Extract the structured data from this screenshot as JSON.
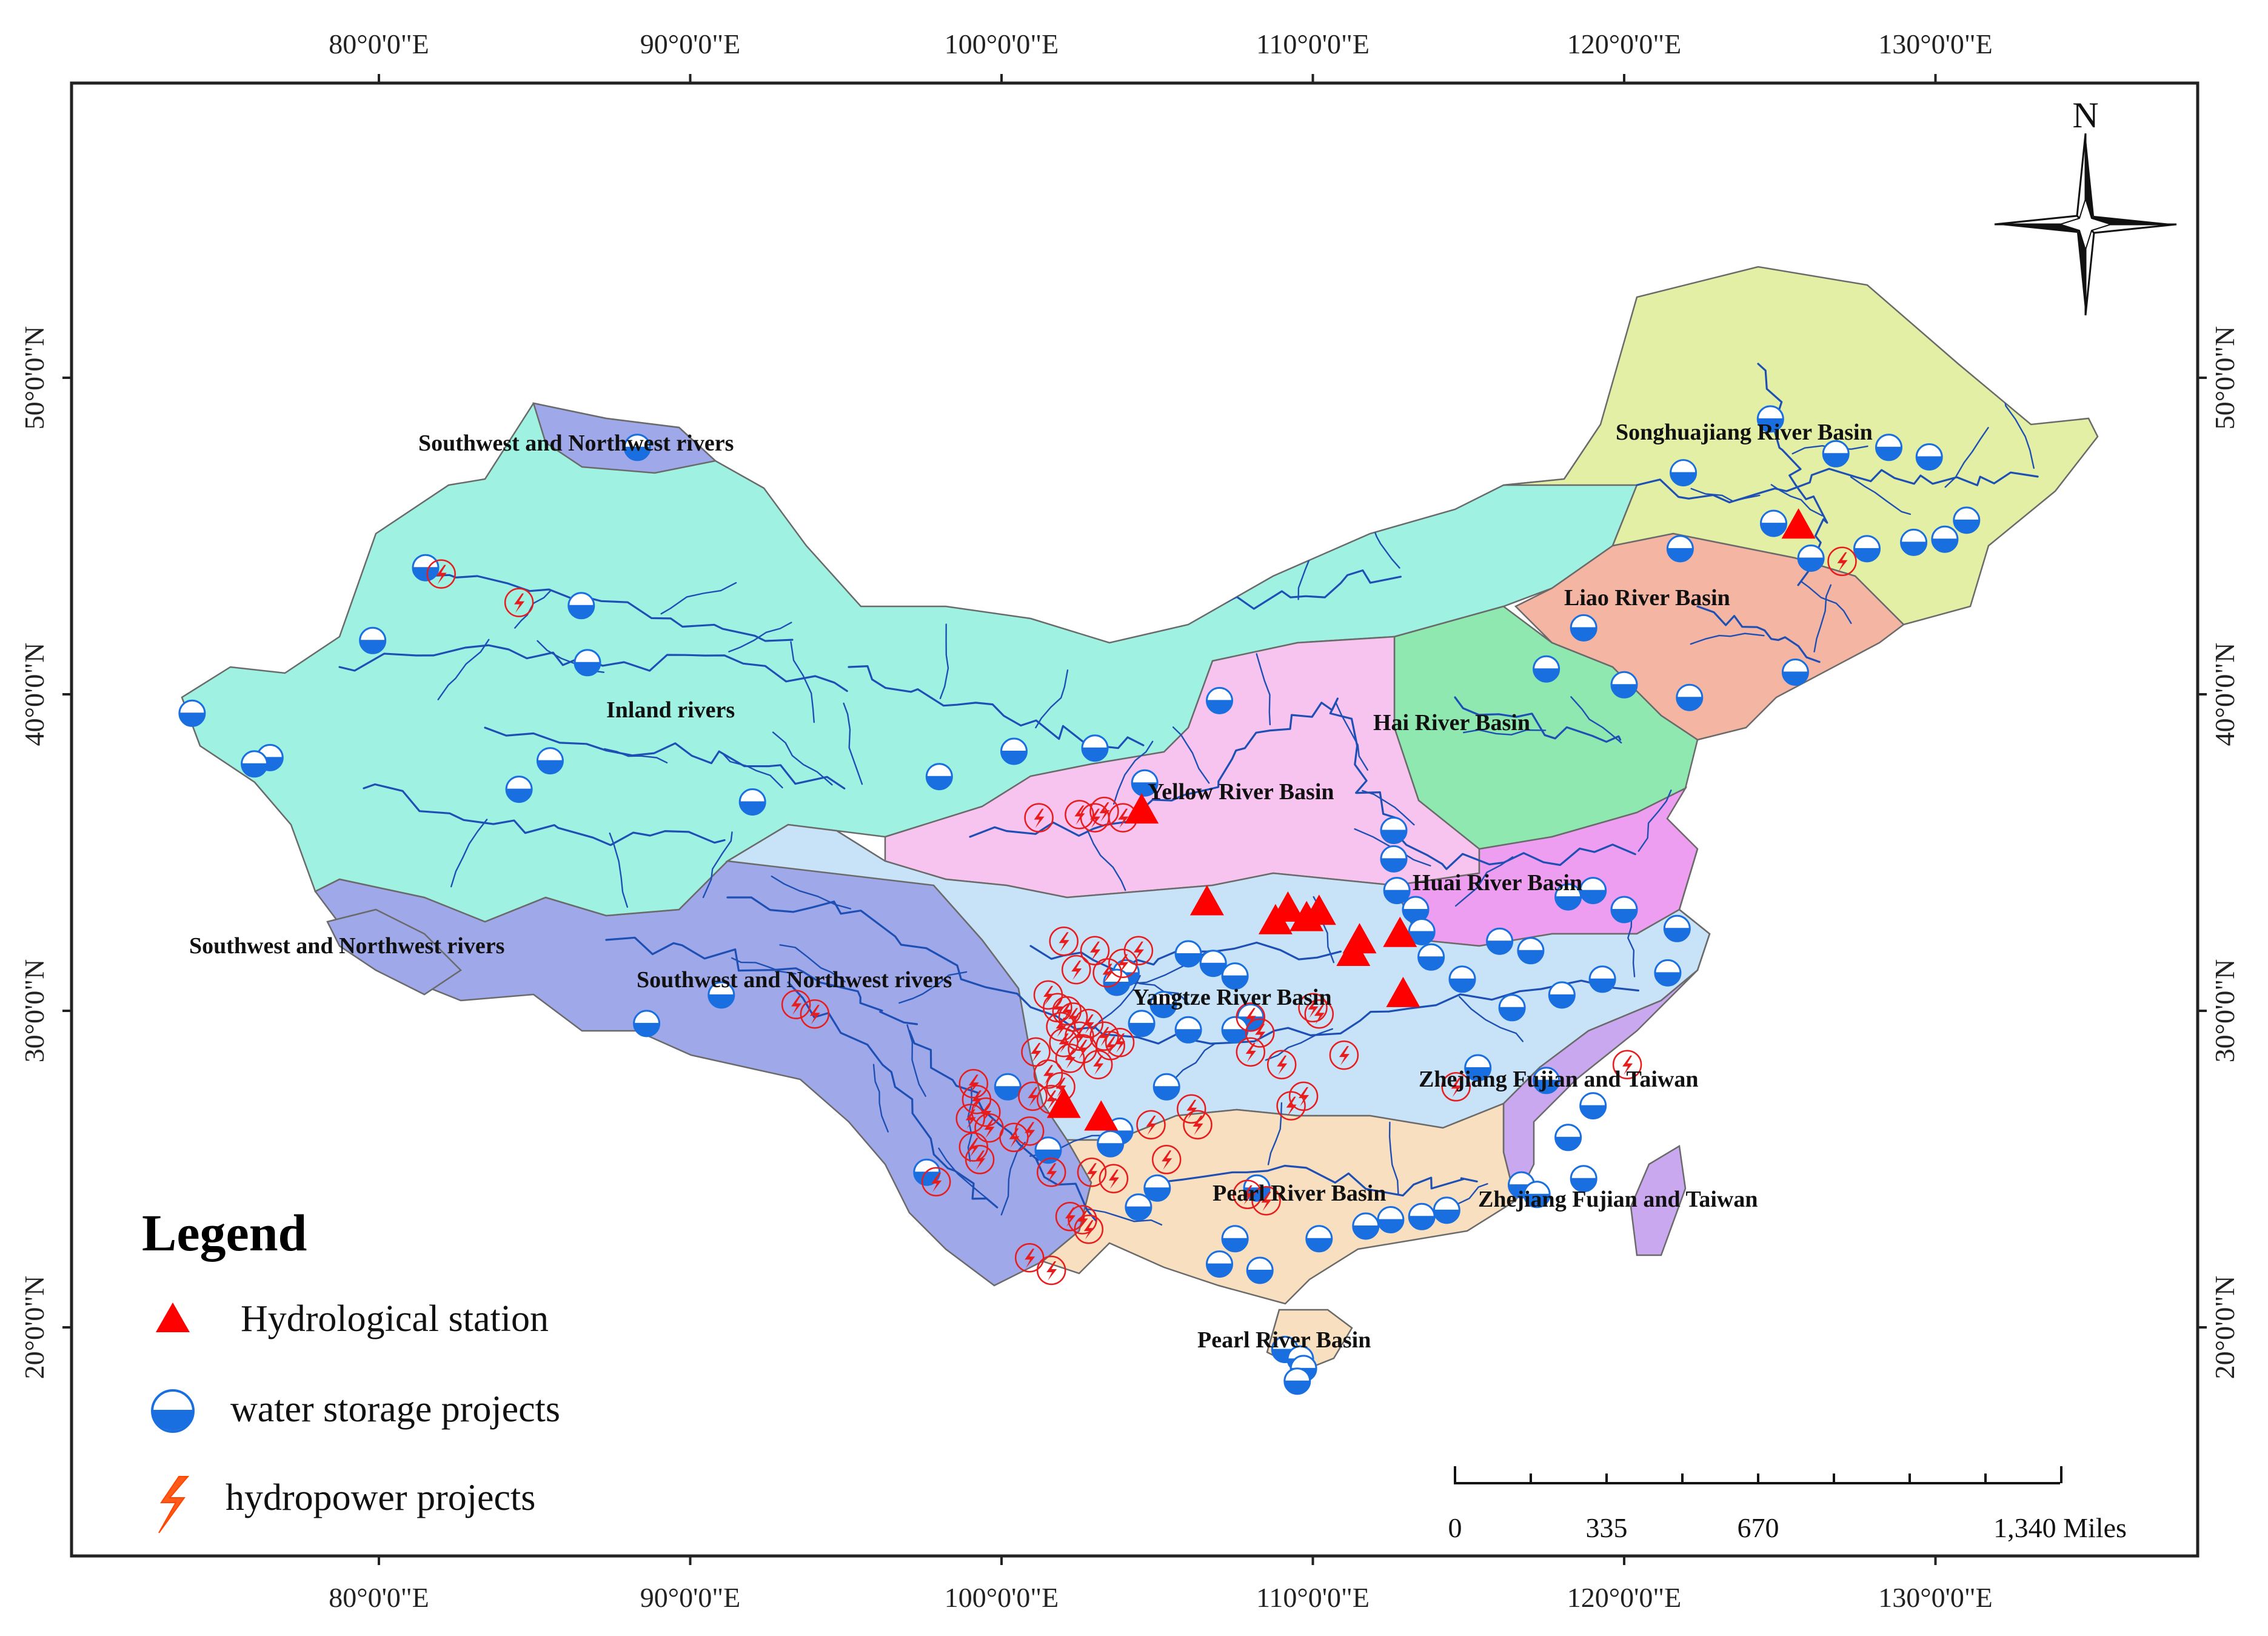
{
  "graticule": {
    "lon_ticks": [
      "80°0'0\"E",
      "90°0'0\"E",
      "100°0'0\"E",
      "110°0'0\"E",
      "120°0'0\"E",
      "130°0'0\"E"
    ],
    "lat_ticks": [
      "50°0'0\"N",
      "40°0'0\"N",
      "30°0'0\"N",
      "20°0'0\"N"
    ]
  },
  "north_arrow": {
    "label": "N",
    "icon": "compass-rose-icon"
  },
  "basins": [
    {
      "name": "Southwest and Northwest rivers",
      "color": "#9fa8e8"
    },
    {
      "name": "Southwest and Northwest rivers",
      "color": "#9fa8e8"
    },
    {
      "name": "Southwest and Northwest rivers",
      "color": "#9fa8e8"
    },
    {
      "name": "Inland rivers",
      "color": "#9ff2e2"
    },
    {
      "name": "Songhuajiang River Basin",
      "color": "#e3efa5"
    },
    {
      "name": "Liao River Basin",
      "color": "#f4b5a2"
    },
    {
      "name": "Hai River Basin",
      "color": "#8ee8b0"
    },
    {
      "name": "Yellow River Basin",
      "color": "#f6c4ee"
    },
    {
      "name": "Huai River Basin",
      "color": "#ee9ef0"
    },
    {
      "name": "Yangtze River Basin",
      "color": "#c8e2f8"
    },
    {
      "name": "Zhejiang Fujian and Taiwan",
      "color": "#c9a8ef"
    },
    {
      "name": "Zhejiang Fujian and Taiwan",
      "color": "#c9a8ef"
    },
    {
      "name": "Pearl River Basin",
      "color": "#f8dfbf"
    },
    {
      "name": "Pearl River Basin",
      "color": "#f8dfbf"
    }
  ],
  "legend": {
    "title": "Legend",
    "items": [
      {
        "label": "Hydrological station",
        "icon": "triangle-icon",
        "color": "#ff0000"
      },
      {
        "label": "water storage projects",
        "icon": "half-circle-icon",
        "color": "#1a6fe0"
      },
      {
        "label": "hydropower projects",
        "icon": "lightning-icon",
        "color": "#ff4500"
      }
    ]
  },
  "scale_bar": {
    "labels": [
      "0",
      "335",
      "670",
      "1,340 Miles"
    ]
  },
  "markers": {
    "hydrological_stations": [
      [
        104.5,
        36.3
      ],
      [
        106.6,
        33.4
      ],
      [
        108.8,
        32.8
      ],
      [
        109.2,
        33.2
      ],
      [
        109.8,
        32.9
      ],
      [
        110.2,
        33.1
      ],
      [
        111.5,
        32.2
      ],
      [
        111.3,
        31.8
      ],
      [
        112.8,
        32.4
      ],
      [
        112.9,
        30.5
      ],
      [
        102.0,
        27.0
      ],
      [
        103.2,
        26.6
      ],
      [
        125.6,
        45.3
      ]
    ],
    "water_storage": [
      [
        88.3,
        47.8
      ],
      [
        81.5,
        44.0
      ],
      [
        86.5,
        42.8
      ],
      [
        79.8,
        41.7
      ],
      [
        74.0,
        39.4
      ],
      [
        76.5,
        38.0
      ],
      [
        76.0,
        37.8
      ],
      [
        85.5,
        37.9
      ],
      [
        86.7,
        41.0
      ],
      [
        84.5,
        37.0
      ],
      [
        92.0,
        36.6
      ],
      [
        98.0,
        37.4
      ],
      [
        100.4,
        38.2
      ],
      [
        103.0,
        38.3
      ],
      [
        104.6,
        37.2
      ],
      [
        107.0,
        39.8
      ],
      [
        112.6,
        35.7
      ],
      [
        112.6,
        34.8
      ],
      [
        112.7,
        33.8
      ],
      [
        113.3,
        33.2
      ],
      [
        113.5,
        32.5
      ],
      [
        113.8,
        31.7
      ],
      [
        116.0,
        32.2
      ],
      [
        117.0,
        31.9
      ],
      [
        118.2,
        33.6
      ],
      [
        119.0,
        33.8
      ],
      [
        120.0,
        33.2
      ],
      [
        121.7,
        32.6
      ],
      [
        116.4,
        30.1
      ],
      [
        118.0,
        30.5
      ],
      [
        119.3,
        31.0
      ],
      [
        121.4,
        31.2
      ],
      [
        114.8,
        31.0
      ],
      [
        115.3,
        28.2
      ],
      [
        117.5,
        27.8
      ],
      [
        119.0,
        27.0
      ],
      [
        118.2,
        26.0
      ],
      [
        118.7,
        24.7
      ],
      [
        116.7,
        24.5
      ],
      [
        117.2,
        24.2
      ],
      [
        113.5,
        23.5
      ],
      [
        112.5,
        23.4
      ],
      [
        114.3,
        23.7
      ],
      [
        111.7,
        23.2
      ],
      [
        110.2,
        22.8
      ],
      [
        108.2,
        24.4
      ],
      [
        107.5,
        22.8
      ],
      [
        107.0,
        22.0
      ],
      [
        108.3,
        21.8
      ],
      [
        109.1,
        19.3
      ],
      [
        109.6,
        19.0
      ],
      [
        109.7,
        18.7
      ],
      [
        109.5,
        18.3
      ],
      [
        104.0,
        31.2
      ],
      [
        105.2,
        30.2
      ],
      [
        106.0,
        31.8
      ],
      [
        106.8,
        31.5
      ],
      [
        107.5,
        31.1
      ],
      [
        108.0,
        29.8
      ],
      [
        107.5,
        29.4
      ],
      [
        106.0,
        29.4
      ],
      [
        104.5,
        29.6
      ],
      [
        103.7,
        30.9
      ],
      [
        105.3,
        27.6
      ],
      [
        103.8,
        26.2
      ],
      [
        103.5,
        25.8
      ],
      [
        105.0,
        24.4
      ],
      [
        104.4,
        23.8
      ],
      [
        101.5,
        25.6
      ],
      [
        100.2,
        27.6
      ],
      [
        91.0,
        30.5
      ],
      [
        88.6,
        29.6
      ],
      [
        97.6,
        24.9
      ],
      [
        121.9,
        47.0
      ],
      [
        124.7,
        48.7
      ],
      [
        126.8,
        47.6
      ],
      [
        128.5,
        47.8
      ],
      [
        129.8,
        47.5
      ],
      [
        121.8,
        44.6
      ],
      [
        124.8,
        45.4
      ],
      [
        126.0,
        44.3
      ],
      [
        127.8,
        44.6
      ],
      [
        129.3,
        44.8
      ],
      [
        130.3,
        44.9
      ],
      [
        131.0,
        45.5
      ],
      [
        118.7,
        42.1
      ],
      [
        117.5,
        40.8
      ],
      [
        120.0,
        40.3
      ],
      [
        122.1,
        39.9
      ],
      [
        125.5,
        40.7
      ]
    ],
    "hydropower": [
      [
        82.0,
        43.8
      ],
      [
        84.5,
        42.9
      ],
      [
        101.2,
        36.1
      ],
      [
        102.5,
        36.2
      ],
      [
        103.0,
        36.1
      ],
      [
        103.3,
        36.3
      ],
      [
        103.9,
        36.1
      ],
      [
        102.0,
        32.2
      ],
      [
        102.4,
        31.3
      ],
      [
        103.0,
        31.9
      ],
      [
        103.4,
        31.2
      ],
      [
        101.5,
        30.5
      ],
      [
        101.8,
        30.1
      ],
      [
        101.9,
        29.5
      ],
      [
        102.0,
        29.0
      ],
      [
        102.2,
        28.5
      ],
      [
        102.1,
        30.0
      ],
      [
        102.3,
        29.8
      ],
      [
        102.5,
        29.2
      ],
      [
        102.8,
        29.6
      ],
      [
        102.6,
        28.8
      ],
      [
        103.1,
        28.3
      ],
      [
        103.3,
        29.2
      ],
      [
        103.5,
        28.9
      ],
      [
        103.8,
        29.0
      ],
      [
        103.9,
        31.5
      ],
      [
        101.1,
        28.7
      ],
      [
        101.5,
        28.0
      ],
      [
        101.9,
        27.6
      ],
      [
        101.6,
        27.2
      ],
      [
        101.0,
        27.3
      ],
      [
        99.1,
        27.7
      ],
      [
        99.2,
        27.2
      ],
      [
        99.5,
        26.8
      ],
      [
        99.0,
        26.6
      ],
      [
        99.6,
        26.3
      ],
      [
        99.1,
        25.7
      ],
      [
        99.3,
        25.3
      ],
      [
        100.4,
        26.0
      ],
      [
        100.9,
        26.2
      ],
      [
        101.6,
        24.9
      ],
      [
        102.2,
        23.5
      ],
      [
        102.6,
        23.4
      ],
      [
        102.8,
        23.1
      ],
      [
        100.9,
        22.2
      ],
      [
        101.6,
        21.8
      ],
      [
        97.9,
        24.6
      ],
      [
        93.4,
        30.2
      ],
      [
        94.0,
        29.9
      ],
      [
        104.8,
        26.4
      ],
      [
        105.3,
        25.3
      ],
      [
        106.1,
        26.9
      ],
      [
        106.3,
        26.4
      ],
      [
        108.0,
        28.7
      ],
      [
        108.3,
        29.3
      ],
      [
        108.0,
        29.8
      ],
      [
        109.0,
        28.3
      ],
      [
        109.3,
        27.0
      ],
      [
        110.0,
        30.1
      ],
      [
        110.2,
        29.9
      ],
      [
        111.0,
        28.6
      ],
      [
        109.7,
        27.3
      ],
      [
        108.5,
        24.0
      ],
      [
        107.9,
        24.2
      ],
      [
        114.6,
        27.6
      ],
      [
        120.1,
        28.3
      ],
      [
        127.0,
        44.2
      ],
      [
        104.4,
        31.9
      ],
      [
        102.9,
        24.9
      ],
      [
        103.6,
        24.7
      ]
    ]
  }
}
